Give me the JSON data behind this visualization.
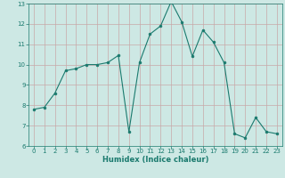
{
  "x": [
    0,
    1,
    2,
    3,
    4,
    5,
    6,
    7,
    8,
    9,
    10,
    11,
    12,
    13,
    14,
    15,
    16,
    17,
    18,
    19,
    20,
    21,
    22,
    23
  ],
  "y": [
    7.8,
    7.9,
    8.6,
    9.7,
    9.8,
    10.0,
    10.0,
    10.1,
    10.45,
    6.7,
    10.1,
    11.5,
    11.9,
    13.1,
    12.1,
    10.4,
    11.7,
    11.1,
    10.1,
    6.6,
    6.4,
    7.4,
    6.7,
    6.6
  ],
  "xlabel": "Humidex (Indice chaleur)",
  "xlim": [
    -0.5,
    23.5
  ],
  "ylim": [
    6,
    13
  ],
  "yticks": [
    6,
    7,
    8,
    9,
    10,
    11,
    12,
    13
  ],
  "xticks": [
    0,
    1,
    2,
    3,
    4,
    5,
    6,
    7,
    8,
    9,
    10,
    11,
    12,
    13,
    14,
    15,
    16,
    17,
    18,
    19,
    20,
    21,
    22,
    23
  ],
  "line_color": "#1a7a6e",
  "marker_color": "#1a7a6e",
  "bg_color": "#cde8e4",
  "grid_color": "#c8a8a8",
  "axis_color": "#1a7a6e",
  "tick_color": "#1a7a6e",
  "label_color": "#1a7a6e",
  "xlabel_fontsize": 6.0,
  "tick_fontsize": 5.0
}
